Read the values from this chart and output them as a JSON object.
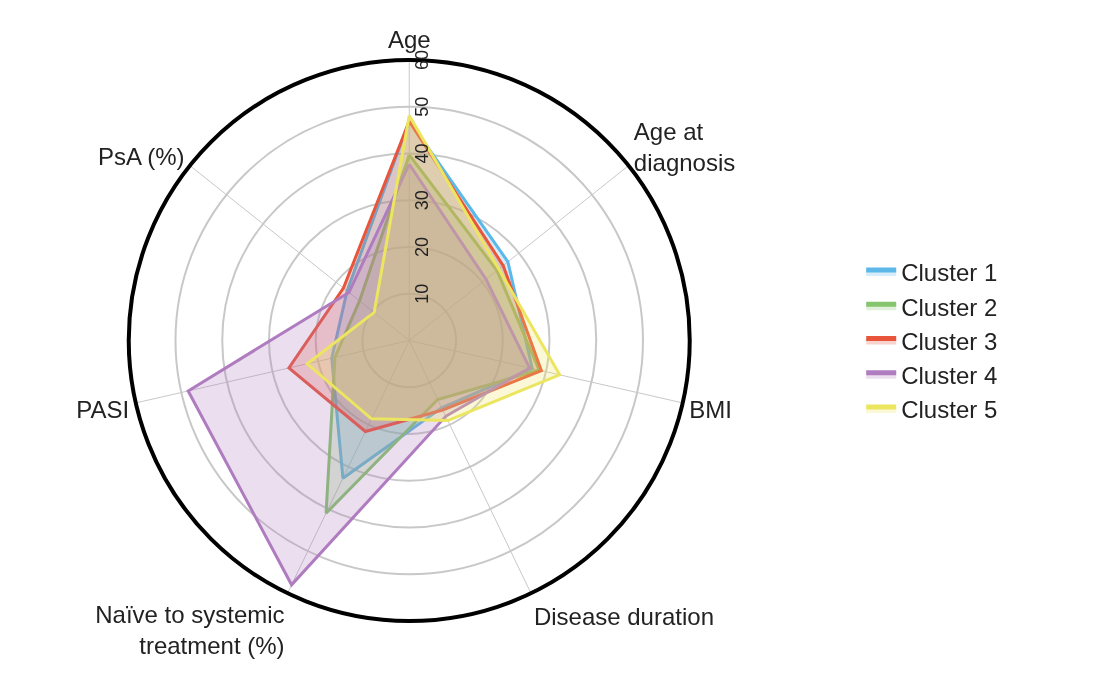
{
  "chart_data": {
    "type": "radar",
    "categories": [
      "Age",
      "Age at\ndiagnosis",
      "BMI",
      "Disease duration",
      "Naïve to systemic\ntreatment (%)",
      "PASI",
      "PsA (%)"
    ],
    "ylim": [
      0,
      60
    ],
    "yticks": [
      10,
      20,
      30,
      40,
      50,
      60
    ],
    "grid": true,
    "legend": "right",
    "marker": "none",
    "line_style": "solid",
    "series": [
      {
        "name": "Cluster 1",
        "color": "#5bb8e8",
        "values": [
          47,
          27,
          27,
          16,
          32.7,
          17,
          17
        ]
      },
      {
        "name": "Cluster 2",
        "color": "#84c56d",
        "values": [
          39.7,
          24,
          28.5,
          14,
          41,
          16.3,
          13.6
        ]
      },
      {
        "name": "Cluster 3",
        "color": "#e8553b",
        "values": [
          46.9,
          25.7,
          29,
          16.5,
          21.6,
          26.4,
          18
        ]
      },
      {
        "name": "Cluster 4",
        "color": "#b07cc0",
        "values": [
          37.7,
          21,
          26.4,
          18,
          58,
          48.5,
          16.5
        ]
      },
      {
        "name": "Cluster 5",
        "color": "#ece560",
        "values": [
          48.1,
          24.5,
          33,
          19,
          18.6,
          22.4,
          9.6
        ]
      }
    ]
  }
}
